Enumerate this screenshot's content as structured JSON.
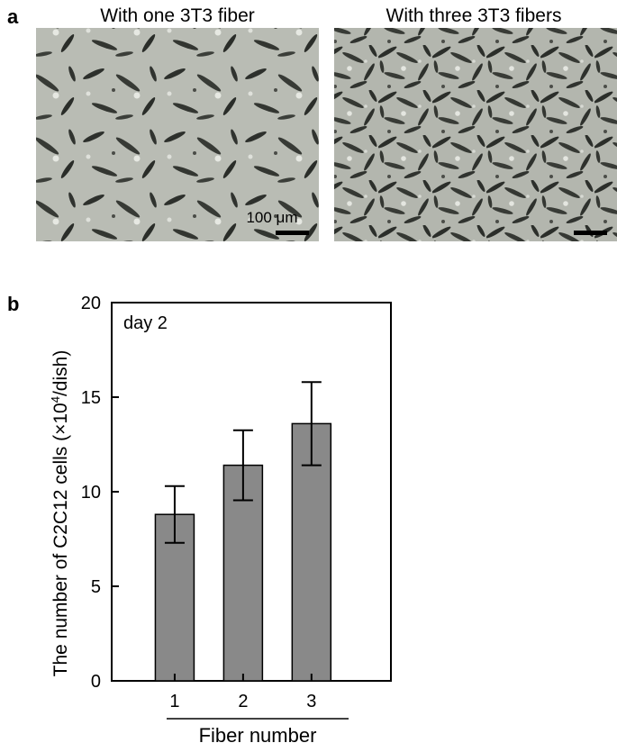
{
  "panel_a": {
    "label": "a",
    "left_title": "With one 3T3 fiber",
    "right_title": "With three 3T3 fibers",
    "scale_bar_label": "100 μm"
  },
  "panel_b": {
    "label": "b"
  },
  "chart_data": {
    "type": "bar",
    "categories": [
      "1",
      "2",
      "3"
    ],
    "values": [
      8.8,
      11.4,
      13.6
    ],
    "errors": [
      1.5,
      1.85,
      2.2
    ],
    "xlabel": "Fiber number",
    "ylabel_parts": {
      "prefix": "The number of C2C12 cells (×10",
      "superscript": "4",
      "suffix": "/dish)"
    },
    "annotation": "day 2",
    "ylim": [
      0,
      20
    ],
    "yticks": [
      0,
      5,
      10,
      15,
      20
    ],
    "bar_color": "#898989",
    "grid": false
  }
}
